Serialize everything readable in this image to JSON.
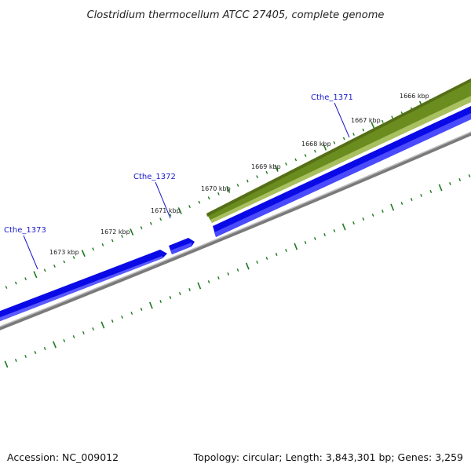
{
  "title": "Clostridium thermocellum ATCC 27405, complete genome",
  "footer": {
    "accession": "Accession: NC_009012",
    "summary": "Topology: circular; Length: 3,843,301 bp; Genes: 3,259"
  },
  "ticks": [
    {
      "label": "1666 kbp"
    },
    {
      "label": "1667 kbp"
    },
    {
      "label": "1668 kbp"
    },
    {
      "label": "1669 kbp"
    },
    {
      "label": "1670 kbp"
    },
    {
      "label": "1671 kbp"
    },
    {
      "label": "1672 kbp"
    },
    {
      "label": "1673 kbp"
    }
  ],
  "genes": [
    {
      "label": "Cthe_1371"
    },
    {
      "label": "Cthe_1372"
    },
    {
      "label": "Cthe_1373"
    }
  ],
  "colors": {
    "cds": "#0a0ae6",
    "cds_light": "#6b6bff",
    "rna": "#6b8c1f",
    "rna_light": "#a8c060",
    "backbone": "#7a7a7a",
    "tick": "#1e7a1e",
    "gene_label": "#1a1acc"
  }
}
